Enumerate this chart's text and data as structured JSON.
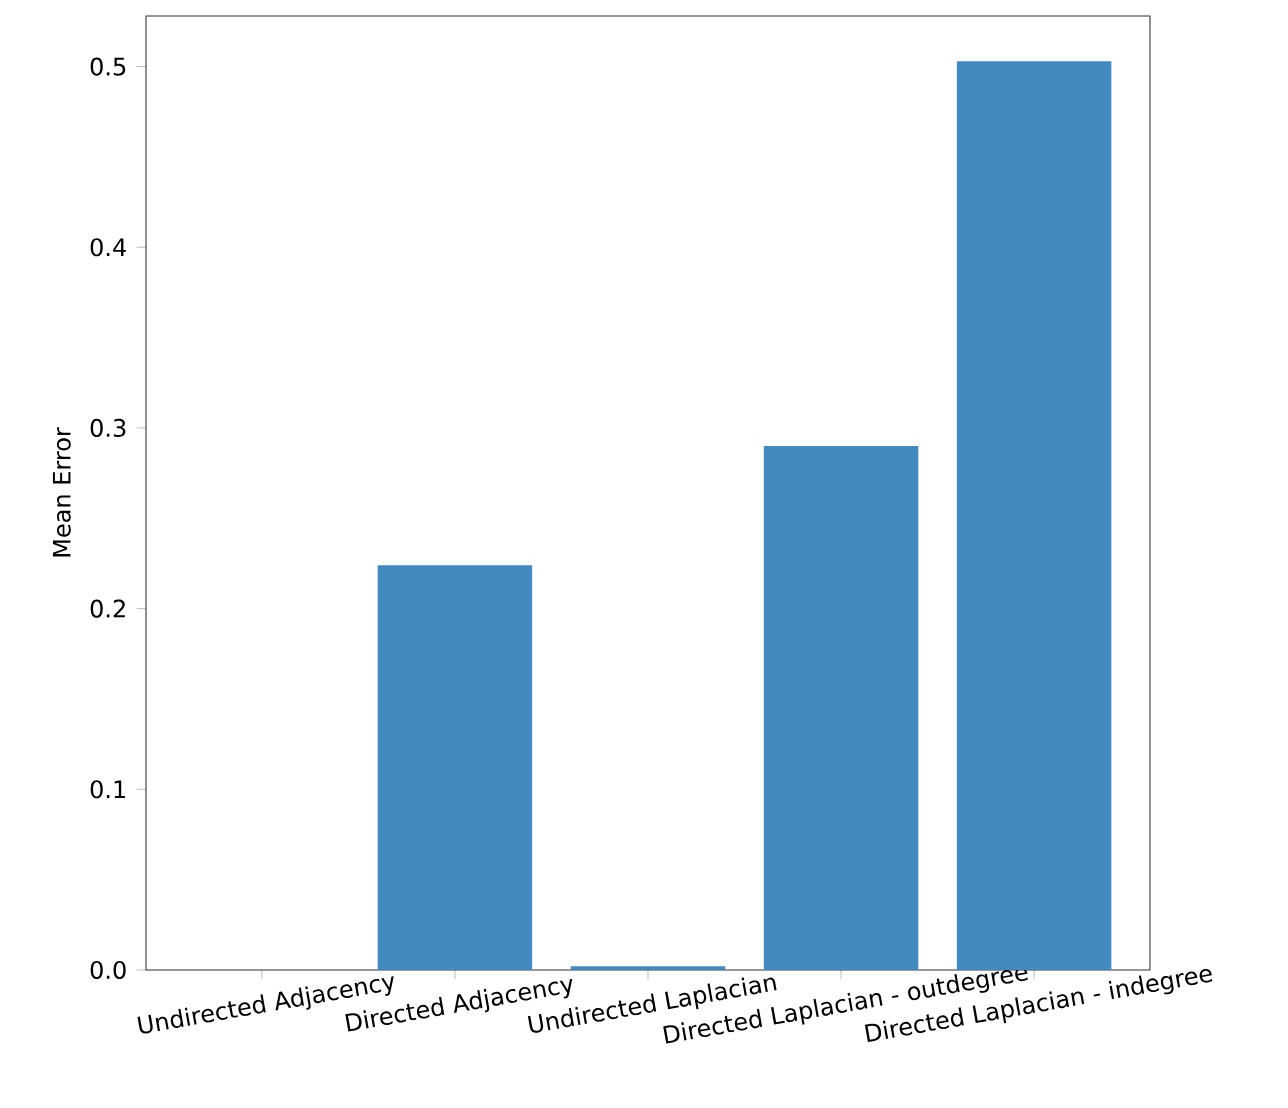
{
  "chart_data": {
    "type": "bar",
    "ylabel": "Mean Error",
    "categories": [
      "Undirected Adjacency",
      "Directed Adjacency",
      "Undirected Laplacian",
      "Directed Laplacian - outdegree",
      "Directed Laplacian - indegree"
    ],
    "values": [
      0,
      0.224,
      0.002,
      0.29,
      0.503
    ],
    "color": "#4189be",
    "ylim": [
      0,
      0.528
    ],
    "yticks": [
      {
        "value": 0,
        "label": "0.0"
      },
      {
        "value": 0.1,
        "label": "0.1"
      },
      {
        "value": 0.2,
        "label": "0.2"
      },
      {
        "value": 0.3,
        "label": "0.3"
      },
      {
        "value": 0.4,
        "label": "0.4"
      },
      {
        "value": 0.5,
        "label": "0.5"
      }
    ],
    "grid": false
  }
}
